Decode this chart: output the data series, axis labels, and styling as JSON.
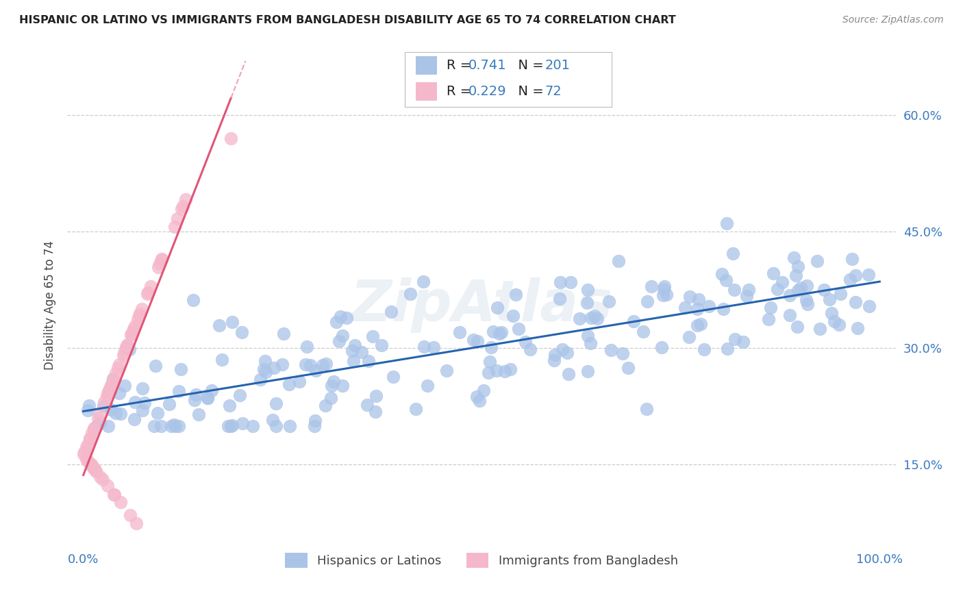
{
  "title": "HISPANIC OR LATINO VS IMMIGRANTS FROM BANGLADESH DISABILITY AGE 65 TO 74 CORRELATION CHART",
  "source": "Source: ZipAtlas.com",
  "ylabel": "Disability Age 65 to 74",
  "legend_label_1": "Hispanics or Latinos",
  "legend_label_2": "Immigrants from Bangladesh",
  "R1": 0.741,
  "N1": 201,
  "R2": 0.229,
  "N2": 72,
  "color1": "#aac4e8",
  "color2": "#f5b8cb",
  "trendline1_color": "#2563ae",
  "trendline2_color": "#e05575",
  "trendline2_dash_color": "#f0a0b8",
  "grid_color": "#cccccc",
  "background_color": "#ffffff",
  "xlim": [
    -0.02,
    1.02
  ],
  "ylim": [
    0.04,
    0.67
  ],
  "yticks": [
    0.15,
    0.3,
    0.45,
    0.6
  ],
  "watermark": "ZipAtlas",
  "seed1": 42,
  "seed2": 77
}
